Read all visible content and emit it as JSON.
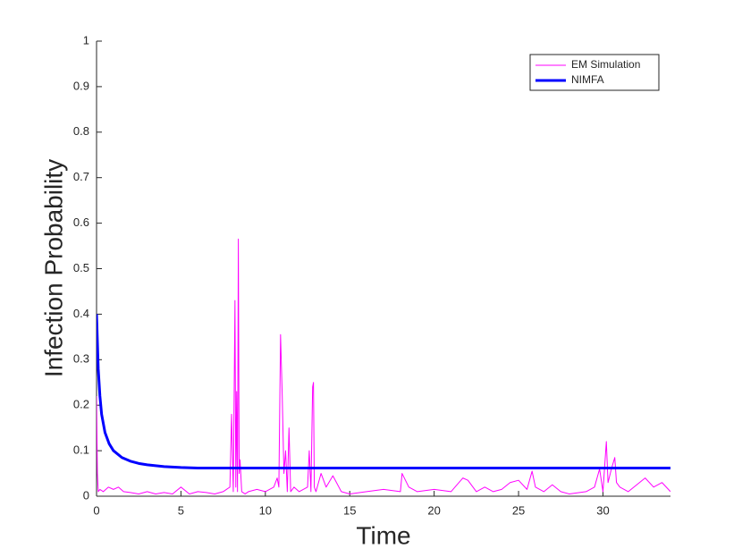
{
  "chart_data": {
    "type": "line",
    "xlabel": "Time",
    "ylabel": "Infection Probability",
    "xlim": [
      0,
      34
    ],
    "xticks": [
      0,
      5,
      10,
      15,
      20,
      25,
      30
    ],
    "ylim": [
      0,
      1
    ],
    "yticks": [
      0,
      0.1,
      0.2,
      0.3,
      0.4,
      0.5,
      0.6,
      0.7,
      0.8,
      0.9,
      1
    ],
    "legend": "upper right",
    "series": [
      {
        "name": "EM Simulation",
        "color": "#ff00ff",
        "width": 1,
        "x": [
          0,
          0.05,
          0.1,
          0.2,
          0.4,
          0.7,
          1,
          1.3,
          1.6,
          2,
          2.5,
          3,
          3.5,
          4,
          4.5,
          5,
          5.5,
          6,
          6.5,
          7,
          7.5,
          7.9,
          8.0,
          8.1,
          8.2,
          8.25,
          8.3,
          8.35,
          8.4,
          8.45,
          8.5,
          8.6,
          8.8,
          9,
          9.5,
          10,
          10.5,
          10.7,
          10.8,
          10.9,
          11.0,
          11.1,
          11.2,
          11.3,
          11.4,
          11.5,
          11.7,
          12,
          12.5,
          12.6,
          12.7,
          12.8,
          12.85,
          12.9,
          13,
          13.3,
          13.6,
          14,
          14.5,
          15,
          16,
          17,
          18,
          18.1,
          18.5,
          19,
          20,
          21,
          21.7,
          22,
          22.5,
          23,
          23.5,
          24,
          24.5,
          25,
          25.5,
          25.8,
          26,
          26.5,
          27,
          27.5,
          28,
          29,
          29.5,
          29.8,
          30,
          30.2,
          30.3,
          30.5,
          30.7,
          30.8,
          31,
          31.5,
          32,
          32.5,
          33,
          33.5,
          34
        ],
        "values": [
          0.22,
          0.05,
          0.01,
          0.015,
          0.01,
          0.02,
          0.015,
          0.02,
          0.01,
          0.008,
          0.005,
          0.01,
          0.005,
          0.008,
          0.005,
          0.02,
          0.005,
          0.01,
          0.008,
          0.005,
          0.01,
          0.02,
          0.18,
          0.01,
          0.43,
          0.02,
          0.23,
          0.01,
          0.565,
          0.05,
          0.08,
          0.01,
          0.005,
          0.01,
          0.015,
          0.01,
          0.02,
          0.04,
          0.02,
          0.355,
          0.22,
          0.05,
          0.1,
          0.01,
          0.15,
          0.01,
          0.02,
          0.01,
          0.02,
          0.1,
          0.01,
          0.24,
          0.25,
          0.02,
          0.01,
          0.05,
          0.02,
          0.045,
          0.01,
          0.005,
          0.01,
          0.015,
          0.01,
          0.05,
          0.02,
          0.01,
          0.015,
          0.01,
          0.04,
          0.035,
          0.01,
          0.02,
          0.01,
          0.015,
          0.03,
          0.035,
          0.015,
          0.055,
          0.02,
          0.01,
          0.025,
          0.01,
          0.005,
          0.01,
          0.02,
          0.06,
          0.01,
          0.12,
          0.03,
          0.06,
          0.085,
          0.03,
          0.02,
          0.01,
          0.025,
          0.04,
          0.02,
          0.03,
          0.01
        ]
      },
      {
        "name": "NIMFA",
        "color": "#0000ff",
        "width": 3,
        "x": [
          0,
          0.1,
          0.2,
          0.3,
          0.5,
          0.75,
          1,
          1.5,
          2,
          2.5,
          3,
          4,
          5,
          6,
          8,
          10,
          15,
          20,
          25,
          30,
          34
        ],
        "values": [
          0.4,
          0.28,
          0.22,
          0.18,
          0.14,
          0.115,
          0.1,
          0.085,
          0.077,
          0.072,
          0.069,
          0.065,
          0.063,
          0.062,
          0.062,
          0.062,
          0.062,
          0.062,
          0.062,
          0.062,
          0.062
        ]
      }
    ]
  }
}
